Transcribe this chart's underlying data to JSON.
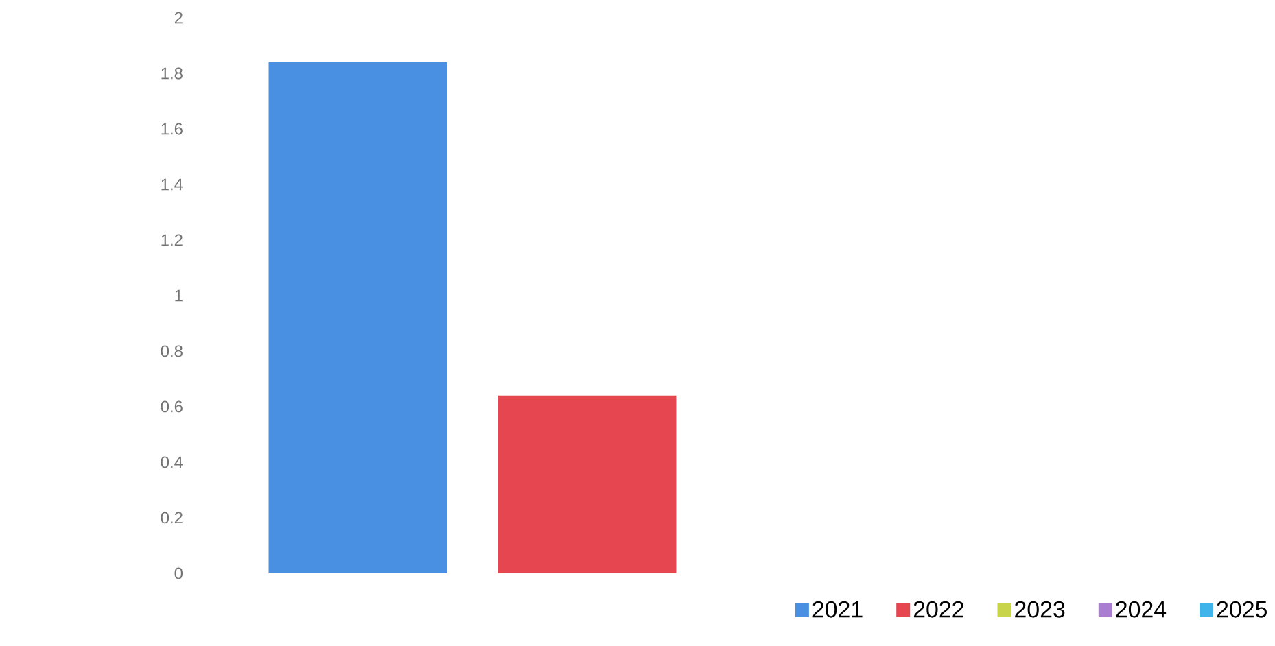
{
  "chart_data": {
    "type": "bar",
    "categories": [
      null
    ],
    "series": [
      {
        "name": "2021",
        "color": "#4a90e2",
        "values": [
          1.84
        ]
      },
      {
        "name": "2022",
        "color": "#e6464f",
        "values": [
          0.64
        ]
      },
      {
        "name": "2023",
        "color": "#c8d44a",
        "values": [
          null
        ]
      },
      {
        "name": "2024",
        "color": "#a97ed0",
        "values": [
          null
        ]
      },
      {
        "name": "2025",
        "color": "#3fb4ea",
        "values": [
          null
        ]
      }
    ],
    "ylim": [
      0,
      2
    ],
    "yticks": [
      0,
      0.2,
      0.4,
      0.6,
      0.8,
      1,
      1.2,
      1.4,
      1.6,
      1.8,
      2
    ],
    "grid": false,
    "legend": "bottom right"
  }
}
